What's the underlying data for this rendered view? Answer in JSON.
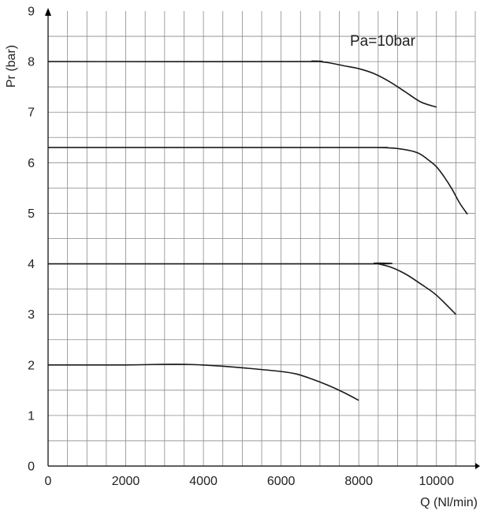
{
  "chart_data": {
    "type": "line",
    "title": "",
    "annotation": "Pa=10bar",
    "xlabel": "Q (Nl/min)",
    "ylabel": "Pr (bar)",
    "xlim": [
      0,
      11000
    ],
    "ylim": [
      0,
      9
    ],
    "x_ticks": [
      0,
      2000,
      4000,
      6000,
      8000,
      10000
    ],
    "y_ticks": [
      0,
      1,
      2,
      3,
      4,
      5,
      6,
      7,
      8,
      9
    ],
    "x_minor_step": 500,
    "y_minor_step": 0.5,
    "grid": true,
    "series": [
      {
        "x": [
          0,
          6500,
          6800,
          7200,
          7600,
          8000,
          8400,
          8800,
          9200,
          9600,
          10000
        ],
        "y": [
          8.0,
          8.0,
          8.01,
          7.98,
          7.92,
          7.86,
          7.76,
          7.6,
          7.4,
          7.2,
          7.1
        ]
      },
      {
        "x": [
          0,
          8000,
          8500,
          9000,
          9500,
          9800,
          10000,
          10200,
          10400,
          10600,
          10800
        ],
        "y": [
          6.3,
          6.3,
          6.3,
          6.28,
          6.2,
          6.05,
          5.92,
          5.72,
          5.48,
          5.2,
          4.98
        ]
      },
      {
        "x": [
          0,
          8200,
          8400,
          8800,
          9200,
          9600,
          10000,
          10500
        ],
        "y": [
          4.0,
          4.0,
          4.01,
          3.94,
          3.8,
          3.6,
          3.38,
          3.0
        ]
      },
      {
        "x": [
          0,
          2000,
          2800,
          3600,
          4400,
          5200,
          6000,
          6400,
          6800,
          7200,
          7600,
          8000
        ],
        "y": [
          2.0,
          2.0,
          2.01,
          2.01,
          1.98,
          1.93,
          1.87,
          1.82,
          1.72,
          1.6,
          1.46,
          1.3
        ]
      }
    ]
  }
}
